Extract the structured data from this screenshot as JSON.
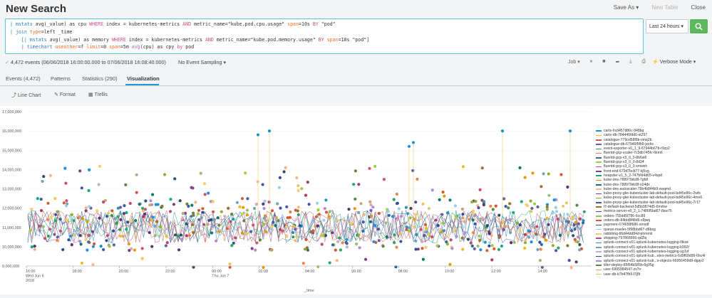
{
  "header": {
    "title": "New Search",
    "save_as": "Save As ▾",
    "new_table": "New Table",
    "close": "Close"
  },
  "search": {
    "line1_a": "| ",
    "line1_cmd": "mstats",
    "line1_b": " avg(_value) as cpu ",
    "line1_kw1": "WHERE",
    "line1_c": " index = kubernetes-metrics ",
    "line1_kw2": "AND",
    "line1_d": " metric_name=\"kube.pod.cpu.usage\" ",
    "line1_e": "span",
    "line1_f": "=10s ",
    "line1_kw3": "BY",
    "line1_g": " \"pod\"",
    "line2_a": "| ",
    "line2_cmd": "join",
    "line2_b": " ",
    "line2_e": "type",
    "line2_c": "=left _time",
    "line3_a": "    [| ",
    "line3_cmd": "mstats",
    "line3_b": " avg(_value) as memory ",
    "line3_kw1": "WHERE",
    "line3_c": " index = kubernetes-metrics ",
    "line3_kw2": "AND",
    "line3_d": " metric_name=\"kube.pod.memory.usage\" ",
    "line3_kw3": "BY",
    "line3_e": " ",
    "line3_f": "span",
    "line3_g": "=10s \"pod\"]",
    "line4_a": "    | ",
    "line4_cmd": "timechart",
    "line4_b": " ",
    "line4_o1": "useother",
    "line4_c": "=f ",
    "line4_o2": "limit",
    "line4_d": "=0 ",
    "line4_o3": "span",
    "line4_e": "=5m ",
    "line4_fn": "avg",
    "line4_f": "(cpu) as cpy ",
    "line4_kw": "by",
    "line4_g": " pod"
  },
  "timepicker": {
    "label": "Last 24 hours ▾"
  },
  "status": {
    "check": "✓",
    "events_text": "4,472 events (06/06/2018 16:00:00.000 to 07/06/2018 16:08:40.000)",
    "sampling": "No Event Sampling ▾",
    "job": "Job ▾",
    "verbose": "Verbose Mode ▾"
  },
  "tabs": [
    {
      "label": "Events (4,472)"
    },
    {
      "label": "Patterns"
    },
    {
      "label": "Statistics (290)"
    },
    {
      "label": "Visualization"
    }
  ],
  "viz_toolbar": {
    "line_chart": "Line Chart",
    "format": "Format",
    "trellis": "Trellis"
  },
  "chart_data": {
    "type": "line",
    "xlabel": "_time",
    "ylabel": "",
    "ylim": [
      9000000,
      17000000
    ],
    "yticks": [
      "17,000,000",
      "16,000,000",
      "15,000,000",
      "14,000,000",
      "13,000,000",
      "12,000,000",
      "11,000,000",
      "10,000,000",
      "9,000,000"
    ],
    "xticks": [
      {
        "l1": "16:00",
        "l2": "Wed Jun 6",
        "l3": "2018"
      },
      {
        "l1": "18:00",
        "l2": "",
        "l3": ""
      },
      {
        "l1": "20:00",
        "l2": "",
        "l3": ""
      },
      {
        "l1": "22:00",
        "l2": "",
        "l3": ""
      },
      {
        "l1": "00:00",
        "l2": "Thu Jun 7",
        "l3": ""
      },
      {
        "l1": "02:00",
        "l2": "",
        "l3": ""
      },
      {
        "l1": "04:00",
        "l2": "",
        "l3": ""
      },
      {
        "l1": "06:00",
        "l2": "",
        "l3": ""
      },
      {
        "l1": "08:00",
        "l2": "",
        "l3": ""
      },
      {
        "l1": "10:00",
        "l2": "",
        "l3": ""
      },
      {
        "l1": "12:00",
        "l2": "",
        "l3": ""
      },
      {
        "l1": "14:00",
        "l2": "",
        "l3": ""
      }
    ],
    "legend": [
      {
        "name": "carts-6cd457d86c-848bq",
        "color": "#1e93c6"
      },
      {
        "name": "carts-db-784446fdd6-st297",
        "color": "#f2b827"
      },
      {
        "name": "catalogue-779cd58f9b-vmq2b",
        "color": "#d6563c"
      },
      {
        "name": "catalogue-db-67946f5fb9-jzzhs",
        "color": "#6a5c9e"
      },
      {
        "name": "event-exporter-v0_1_9-67944b67b-r9zp2",
        "color": "#31a35f"
      },
      {
        "name": "fluentd-gcp-scaler-7c5db745fc-6km6",
        "color": "#ed8440"
      },
      {
        "name": "fluentd-gcp-v3_0_0-8b6w6",
        "color": "#3863a0"
      },
      {
        "name": "fluentd-gcp-v3_0_0-8d24",
        "color": "#a2cc3e"
      },
      {
        "name": "fluentd-gcp-v3_0_0-xmwxh",
        "color": "#cc5068"
      },
      {
        "name": "front-end-679d7bcb77-kj5vg",
        "color": "#73427f"
      },
      {
        "name": "heapster-v1_5_2-747bfd4d65-v4spd",
        "color": "#11a88b"
      },
      {
        "name": "kube-dns-788979dc8f-7gfdl",
        "color": "#ea9600"
      },
      {
        "name": "kube-dns-788979dc8f-n24dx",
        "color": "#0e776d"
      },
      {
        "name": "kube-dns-autoscaler-79b4b844b9-xwqmd",
        "color": "#ffb380"
      },
      {
        "name": "kube-proxy-gke-kubecluster-lab-default-pool-bd45e96c-2wfs",
        "color": "#aa3977"
      },
      {
        "name": "kube-proxy-gke-kubecluster-lab-default-pool-bd45e96c-4mn6",
        "color": "#91af27"
      },
      {
        "name": "kube-proxy-gke-kubecluster-lab-default-pool-bd45e96c-7r17",
        "color": "#4453aa"
      },
      {
        "name": "l7-default-backend-5d5b9874d5-6mrhw",
        "color": "#99712b"
      },
      {
        "name": "metrics-server-v0_2_1-7486f5bd67-8sw76",
        "color": "#553577"
      },
      {
        "name": "orders-755dd5f786-6cc89",
        "color": "#97bc71"
      },
      {
        "name": "orders-db-84bb8f48d6-x9jwq",
        "color": "#d35c2d"
      },
      {
        "name": "payment-674658f686-smsdf",
        "color": "#314d5b"
      },
      {
        "name": "queue-master-5f98bbd67-d8bsg",
        "color": "#99cfe2"
      },
      {
        "name": "rabbitmq-86d44dd84d-phmmk",
        "color": "#f8cc6c"
      },
      {
        "name": "shipping-797868956-qd2lq",
        "color": "#b94a71"
      },
      {
        "name": "splunk-connect-v01-splunk-kubernetes-logging-l9ksk",
        "color": "#1d8fe0"
      },
      {
        "name": "splunk-connect-v01-splunk-kubernetes-logging-k992t",
        "color": "#6fa3b8"
      },
      {
        "name": "splunk-connect-v01-splunk-kubernetes-logging-sg1vf",
        "color": "#d2a7c5"
      },
      {
        "name": "splunk-connect-v01-splunk-kub...etes-metrics-6d9f69d99-6hc4t",
        "color": "#2a4f8c"
      },
      {
        "name": "splunk-connect-v01-splunk-kub...s-objects-66956459d8-dgqv2",
        "color": "#ae8cd3"
      },
      {
        "name": "tiller-deploy-85f54b585b-6g95g",
        "color": "#5b8a3c"
      },
      {
        "name": "user-6995984547-zv7rr",
        "color": "#c6a66b"
      },
      {
        "name": "user-db-b7b47fb9-l7j8t",
        "color": "#e1c95d"
      }
    ]
  }
}
